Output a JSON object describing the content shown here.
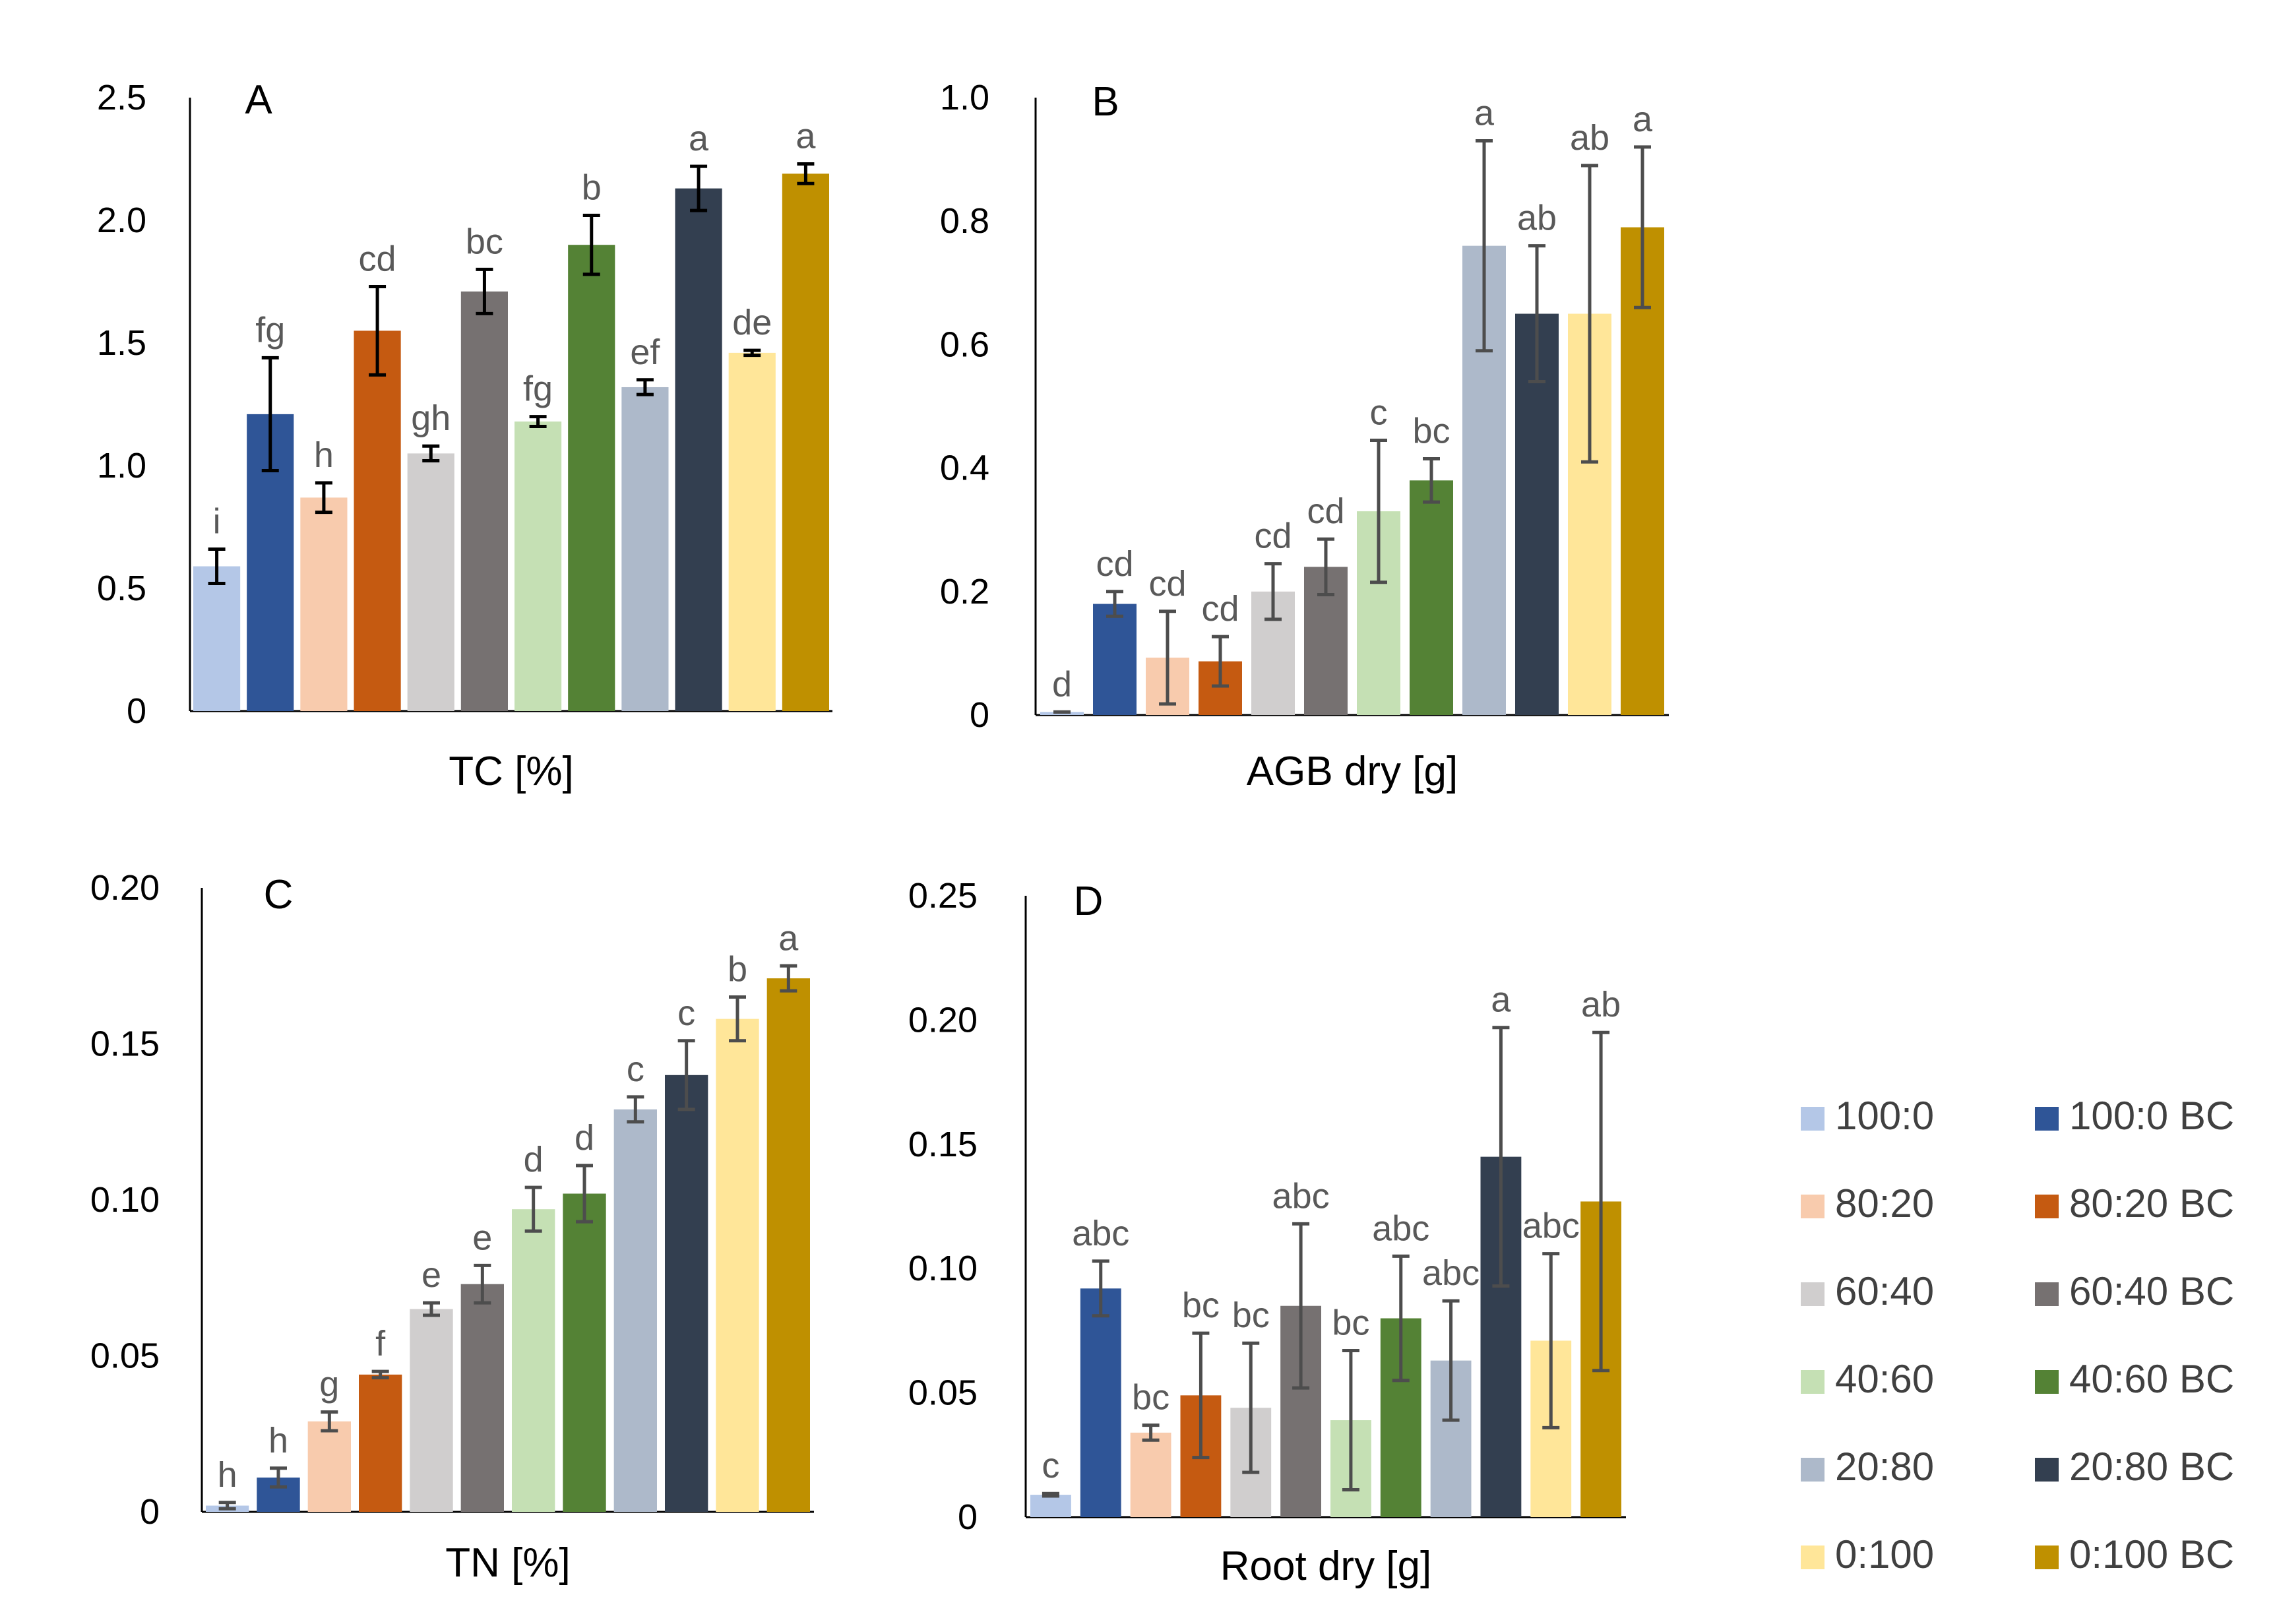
{
  "colors": [
    "#b4c7e7",
    "#2f5597",
    "#f8cbad",
    "#c55a11",
    "#d0cece",
    "#767171",
    "#c5e0b4",
    "#548235",
    "#adb9ca",
    "#333f50",
    "#ffe699",
    "#bf9000"
  ],
  "legend": [
    "100:0",
    "100:0 BC",
    "80:20",
    "80:20 BC",
    "60:40",
    "60:40 BC",
    "40:60",
    "40:60 BC",
    "20:80",
    "20:80 BC",
    "0:100",
    "0:100 BC"
  ],
  "chart_data": [
    {
      "type": "bar",
      "panel": "A",
      "xlabel": "TC [%]",
      "ylim": [
        0,
        2.5
      ],
      "ticks": [
        "0",
        "0.5",
        "1.0",
        "1.5",
        "2.0",
        "2.5"
      ],
      "tickValues": [
        0,
        0.5,
        1,
        1.5,
        2,
        2.5
      ],
      "categories": [
        "100:0",
        "100:0 BC",
        "80:20",
        "80:20 BC",
        "60:40",
        "60:40 BC",
        "40:60",
        "40:60 BC",
        "20:80",
        "20:80 BC",
        "0:100",
        "0:100 BC"
      ],
      "values": [
        0.59,
        1.21,
        0.87,
        1.55,
        1.05,
        1.71,
        1.18,
        1.9,
        1.32,
        2.13,
        1.46,
        2.19
      ],
      "errors": [
        0.07,
        0.23,
        0.06,
        0.18,
        0.03,
        0.09,
        0.02,
        0.12,
        0.03,
        0.09,
        0.01,
        0.04
      ],
      "letters": [
        "i",
        "fg",
        "h",
        "cd",
        "gh",
        "bc",
        "fg",
        "b",
        "ef",
        "a",
        "de",
        "a"
      ],
      "errColor": "#000000"
    },
    {
      "type": "bar",
      "panel": "B",
      "xlabel": "AGB dry [g]",
      "ylim": [
        0,
        1.0
      ],
      "ticks": [
        "0",
        "0.2",
        "0.4",
        "0.6",
        "0.8",
        "1.0"
      ],
      "tickValues": [
        0,
        0.2,
        0.4,
        0.6,
        0.8,
        1.0
      ],
      "categories": [
        "100:0",
        "100:0 BC",
        "80:20",
        "80:20 BC",
        "60:40",
        "60:40 BC",
        "40:60",
        "40:60 BC",
        "20:80",
        "20:80 BC",
        "0:100",
        "0:100 BC"
      ],
      "values": [
        0.005,
        0.18,
        0.093,
        0.087,
        0.2,
        0.24,
        0.33,
        0.38,
        0.76,
        0.65,
        0.65,
        0.79
      ],
      "errors": [
        0,
        0.02,
        0.075,
        0.04,
        0.045,
        0.045,
        0.115,
        0.035,
        0.17,
        0.11,
        0.24,
        0.13
      ],
      "letters": [
        "d",
        "cd",
        "cd",
        "cd",
        "cd",
        "cd",
        "c",
        "bc",
        "a",
        "ab",
        "ab",
        "a"
      ],
      "errColor": "#4d4d4d"
    },
    {
      "type": "bar",
      "panel": "C",
      "xlabel": "TN [%]",
      "ylim": [
        0,
        0.2
      ],
      "ticks": [
        "0",
        "0.05",
        "0.10",
        "0.15",
        "0.20"
      ],
      "tickValues": [
        0,
        0.05,
        0.1,
        0.15,
        0.2
      ],
      "categories": [
        "100:0",
        "100:0 BC",
        "80:20",
        "80:20 BC",
        "60:40",
        "60:40 BC",
        "40:60",
        "40:60 BC",
        "20:80",
        "20:80 BC",
        "0:100",
        "0:100 BC"
      ],
      "values": [
        0.002,
        0.011,
        0.029,
        0.044,
        0.065,
        0.073,
        0.097,
        0.102,
        0.129,
        0.14,
        0.158,
        0.171
      ],
      "errors": [
        0.001,
        0.003,
        0.003,
        0.001,
        0.002,
        0.006,
        0.007,
        0.009,
        0.004,
        0.011,
        0.007,
        0.004
      ],
      "letters": [
        "h",
        "h",
        "g",
        "f",
        "e",
        "e",
        "d",
        "d",
        "c",
        "c",
        "b",
        "a"
      ],
      "errColor": "#4d4d4d"
    },
    {
      "type": "bar",
      "panel": "D",
      "xlabel": "Root dry [g]",
      "ylim": [
        0,
        0.25
      ],
      "ticks": [
        "0",
        "0.05",
        "0.10",
        "0.15",
        "0.20",
        "0.25"
      ],
      "tickValues": [
        0,
        0.05,
        0.1,
        0.15,
        0.2,
        0.25
      ],
      "categories": [
        "100:0",
        "100:0 BC",
        "80:20",
        "80:20 BC",
        "60:40",
        "60:40 BC",
        "40:60",
        "40:60 BC",
        "20:80",
        "20:80 BC",
        "0:100",
        "0:100 BC"
      ],
      "values": [
        0.009,
        0.092,
        0.034,
        0.049,
        0.044,
        0.085,
        0.039,
        0.08,
        0.063,
        0.145,
        0.071,
        0.127
      ],
      "errors": [
        0.0005,
        0.011,
        0.003,
        0.025,
        0.026,
        0.033,
        0.028,
        0.025,
        0.024,
        0.052,
        0.035,
        0.068
      ],
      "letters": [
        "c",
        "abc",
        "bc",
        "bc",
        "bc",
        "abc",
        "bc",
        "abc",
        "abc",
        "a",
        "abc",
        "ab"
      ],
      "errColor": "#4d4d4d"
    }
  ]
}
